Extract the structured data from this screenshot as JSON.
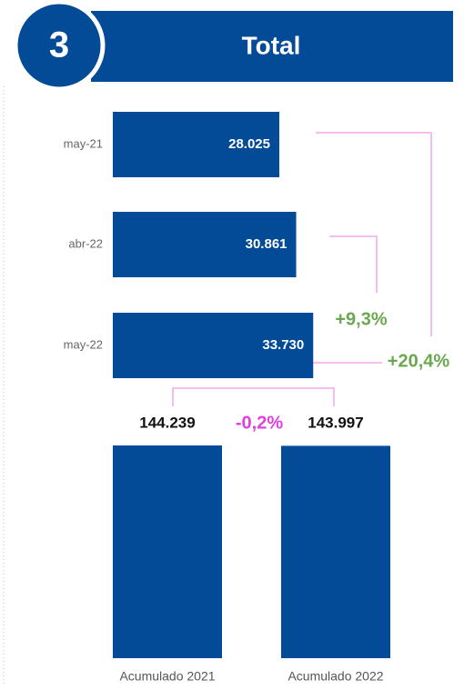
{
  "header": {
    "number": "3",
    "title": "Total"
  },
  "chart_data": [
    {
      "type": "hbar",
      "categories": [
        "may-21",
        "abr-22",
        "may-22"
      ],
      "values": [
        28025,
        30861,
        33730
      ],
      "value_labels": [
        "28.025",
        "30.861",
        "33.730"
      ],
      "color": "#034a97"
    },
    {
      "type": "bar",
      "categories": [
        "Acumulado 2021",
        "Acumulado 2022"
      ],
      "values": [
        144239,
        143997
      ],
      "value_labels": [
        "144.239",
        "143.997"
      ],
      "color": "#034a97"
    }
  ],
  "annotations": [
    {
      "text": "+9,3%",
      "color": "#6aa84f"
    },
    {
      "text": "+20,4%",
      "color": "#6aa84f"
    },
    {
      "text": "-0,2%",
      "color": "#e040e0"
    }
  ]
}
